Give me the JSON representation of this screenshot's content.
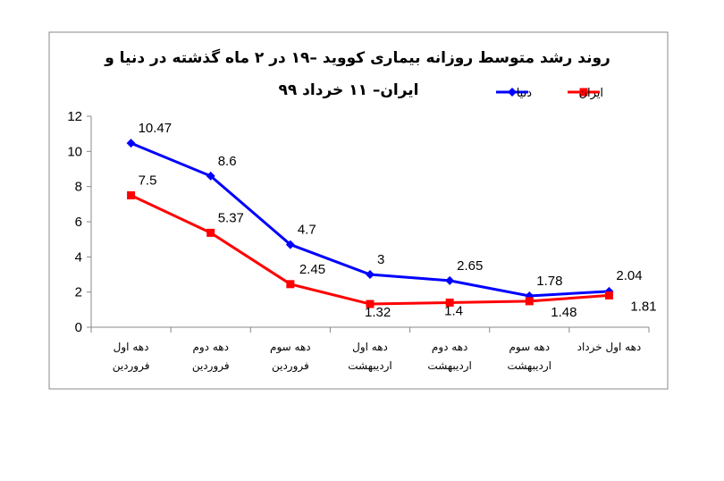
{
  "chart_data": {
    "type": "line",
    "title": [
      "روند رشد متوسط روزانه بیماری کووید –۱۹ در ۲ ماه گذشته در دنیا و",
      "ایران– ۱۱ خرداد ۹۹"
    ],
    "categories": [
      [
        "دهه اول",
        "فروردین"
      ],
      [
        "دهه دوم",
        "فروردین"
      ],
      [
        "دهه سوم",
        "فروردین"
      ],
      [
        "دهه اول",
        "اردیبهشت"
      ],
      [
        "دهه دوم",
        "اردیبهشت"
      ],
      [
        "دهه سوم",
        "اردیبهشت"
      ],
      [
        "دهه اول خرداد"
      ]
    ],
    "series": [
      {
        "name": "دنیا",
        "color": "#0000FF",
        "marker": "diamond",
        "values": [
          10.47,
          8.6,
          4.7,
          3,
          2.65,
          1.78,
          2.04
        ],
        "labels": [
          "10.47",
          "8.6",
          "4.7",
          "3",
          "2.65",
          "1.78",
          "2.04"
        ]
      },
      {
        "name": "ایران",
        "color": "#FF0000",
        "marker": "square",
        "values": [
          7.5,
          5.37,
          2.45,
          1.32,
          1.4,
          1.48,
          1.81
        ],
        "labels": [
          "7.5",
          "5.37",
          "2.45",
          "1.32",
          "1.4",
          "1.48",
          "1.81"
        ]
      }
    ],
    "ylim": [
      0,
      12
    ],
    "yticks": [
      "0",
      "2",
      "4",
      "6",
      "8",
      "10",
      "12"
    ],
    "grid": false,
    "legend_position": "top-right"
  }
}
